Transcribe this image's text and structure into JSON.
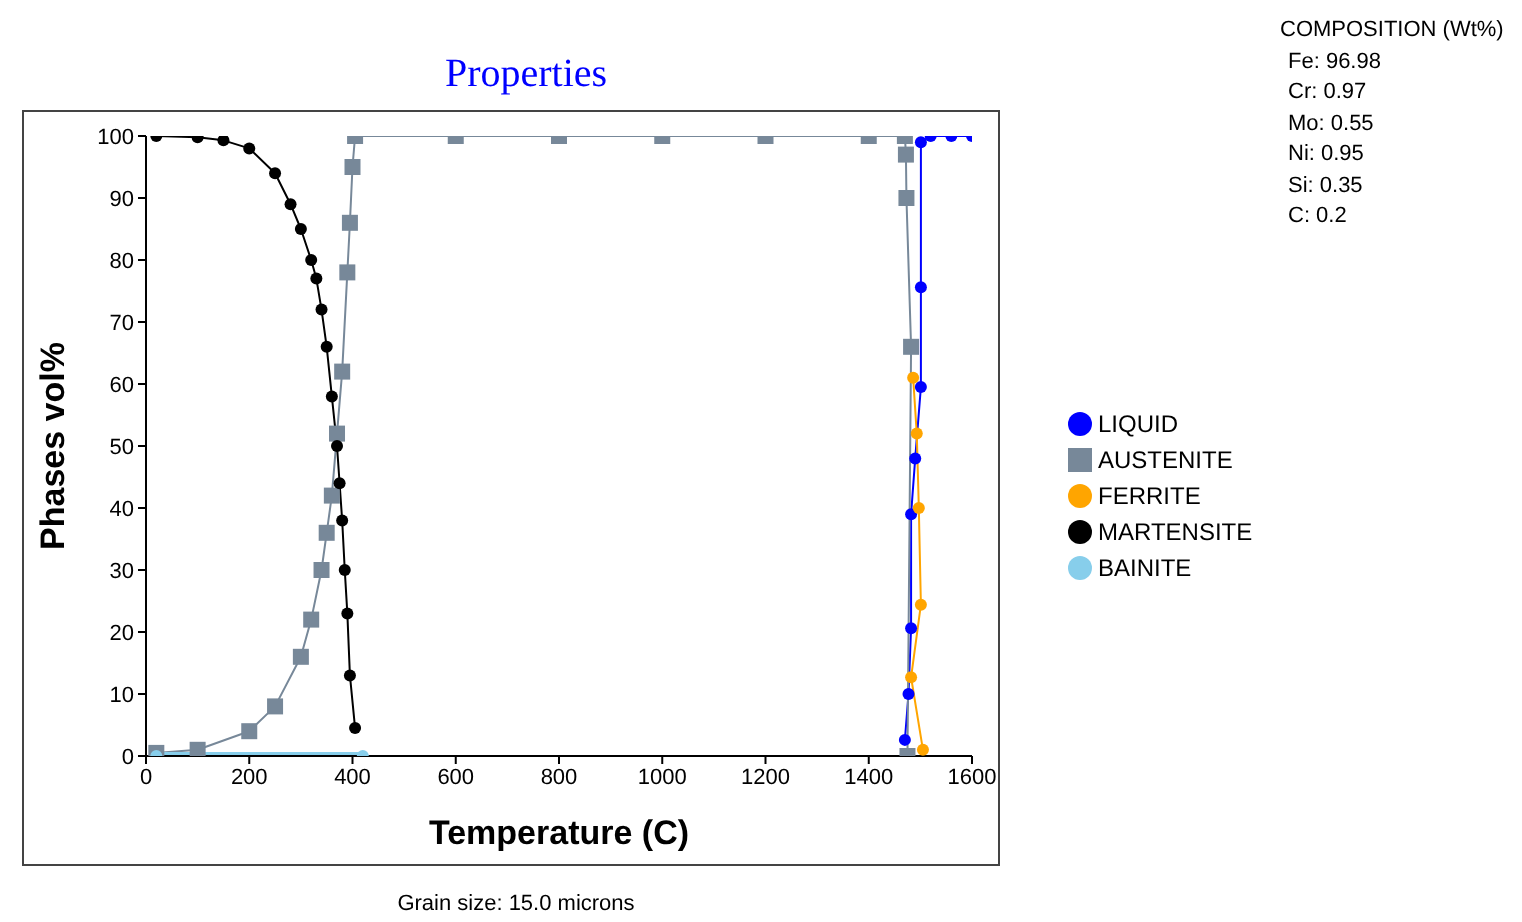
{
  "chart_data": {
    "type": "line",
    "title": "Properties",
    "xlabel": "Temperature (C)",
    "ylabel": "Phases vol%",
    "xlim": [
      0,
      1600
    ],
    "xticks": [
      0,
      200,
      400,
      600,
      800,
      1000,
      1200,
      1400,
      1600
    ],
    "ylim": [
      0,
      100
    ],
    "yticks": [
      0,
      10,
      20,
      30,
      40,
      50,
      60,
      70,
      80,
      90,
      100
    ],
    "legend": "right",
    "line_style": "solid",
    "annotations": [
      "COMPOSITION (Wt%)",
      "Fe: 96.98",
      "Cr: 0.97",
      "Mo: 0.55",
      "Ni: 0.95",
      "Si: 0.35",
      "C: 0.2",
      "Grain size: 15.0 microns"
    ],
    "series": [
      {
        "name": "LIQUID",
        "color": "#0000ff",
        "marker": "circle",
        "x": [
          1470,
          1477,
          1482,
          1482,
          1490,
          1501,
          1501,
          1501,
          1520,
          1560,
          1600
        ],
        "values": [
          2.6,
          10,
          20.6,
          39,
          48,
          59.5,
          75.6,
          99,
          100,
          100,
          100
        ]
      },
      {
        "name": "AUSTENITE",
        "color": "#778899",
        "marker": "square",
        "x": [
          20,
          100,
          200,
          250,
          300,
          320,
          340,
          350,
          360,
          370,
          380,
          390,
          395,
          400,
          405,
          600,
          800,
          1000,
          1200,
          1400,
          1470,
          1472,
          1473,
          1482,
          1475
        ],
        "values": [
          0.5,
          1,
          4,
          8,
          16,
          22,
          30,
          36,
          42,
          52,
          62,
          78,
          86,
          95,
          100,
          100,
          100,
          100,
          100,
          100,
          100,
          97,
          90,
          66,
          0
        ]
      },
      {
        "name": "FERRITE",
        "color": "#ffa500",
        "marker": "circle",
        "x": [
          1505,
          1482,
          1501,
          1497,
          1493,
          1486
        ],
        "values": [
          1,
          12.7,
          24.4,
          40,
          52,
          61
        ]
      },
      {
        "name": "MARTENSITE",
        "color": "#000000",
        "marker": "circle",
        "x": [
          20,
          100,
          150,
          200,
          250,
          280,
          300,
          320,
          330,
          340,
          350,
          360,
          370,
          375,
          380,
          385,
          390,
          395,
          405
        ],
        "values": [
          100,
          99.8,
          99.3,
          98,
          94,
          89,
          85,
          80,
          77,
          72,
          66,
          58,
          50,
          44,
          38,
          30,
          23,
          13,
          4.5
        ]
      },
      {
        "name": "BAINITE",
        "color": "#87ceeb",
        "marker": "circle",
        "x": [
          20,
          420
        ],
        "values": [
          0,
          0
        ]
      }
    ]
  }
}
